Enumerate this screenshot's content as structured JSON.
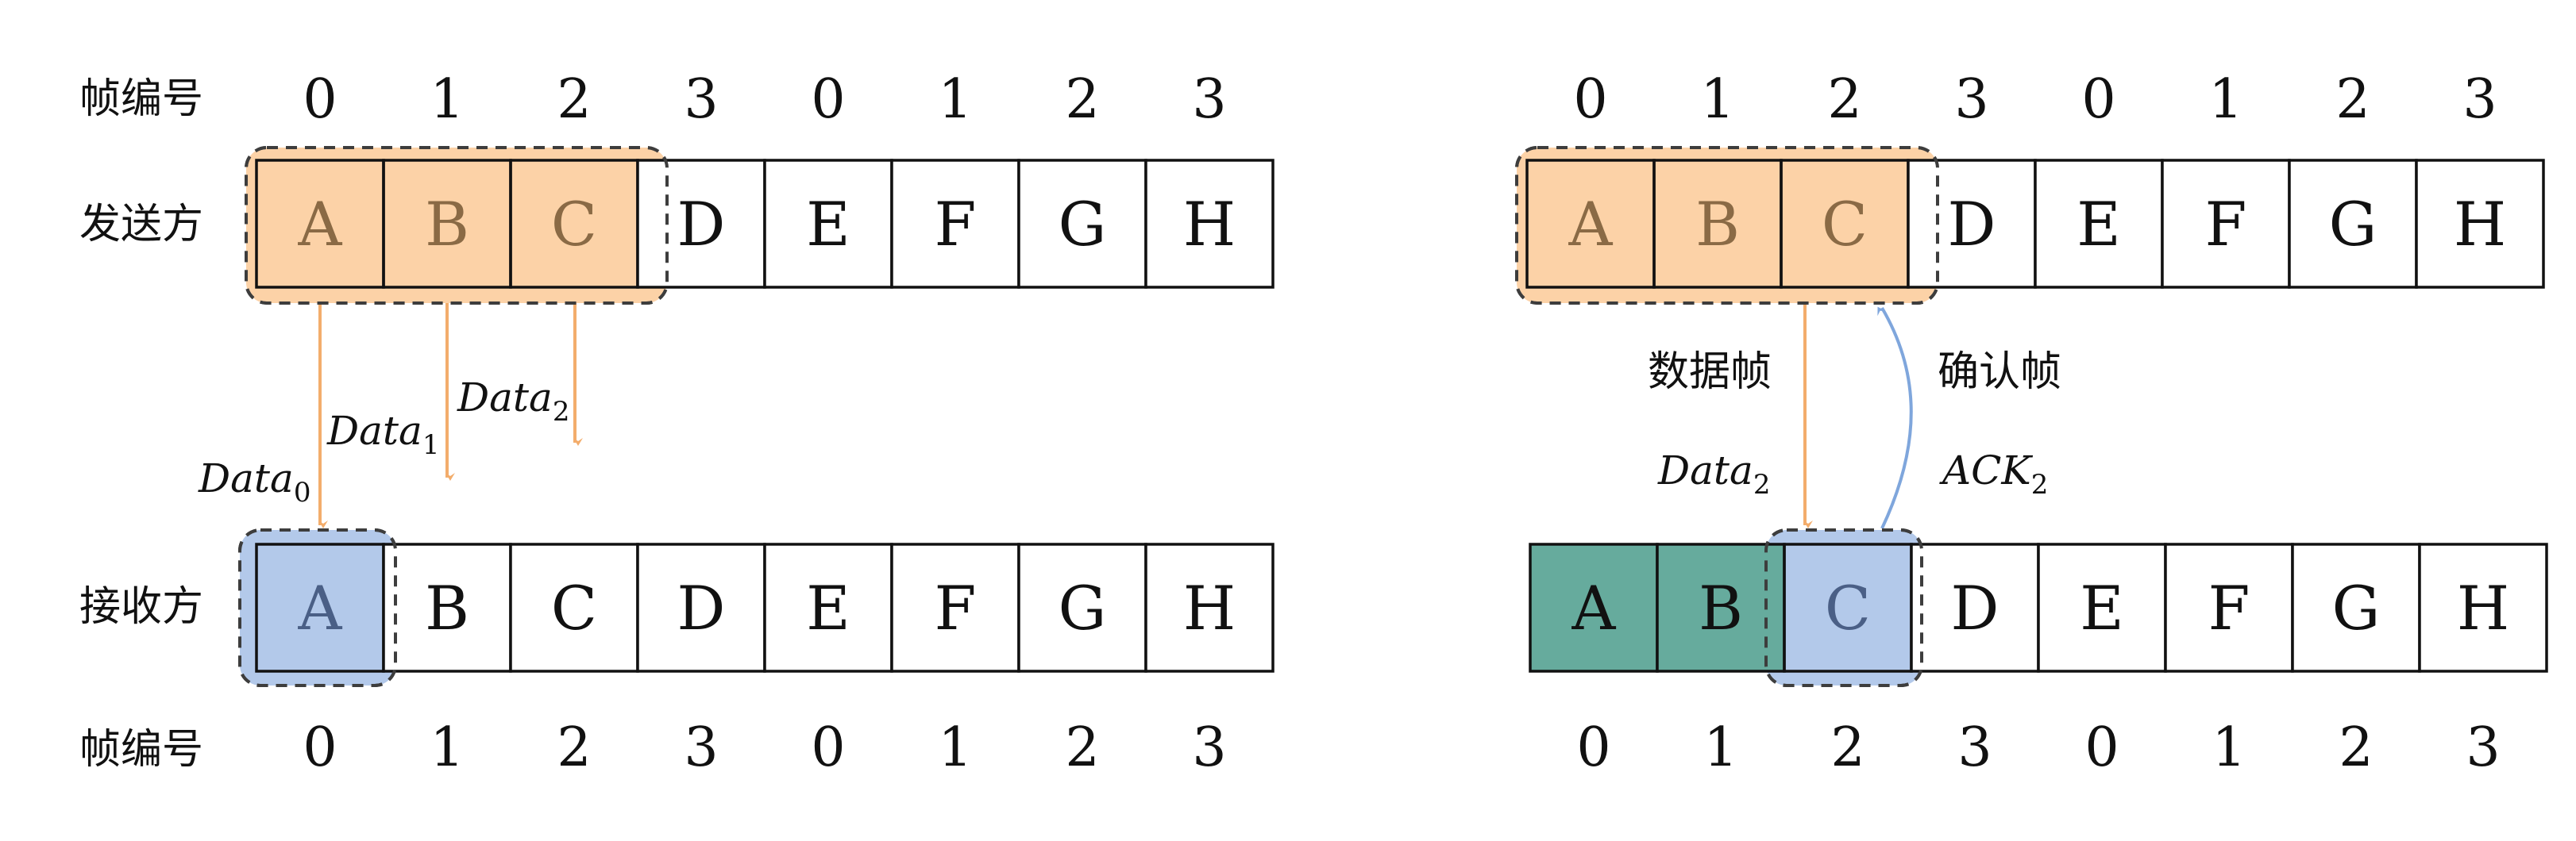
{
  "row_labels": {
    "frame_no_top": "帧编号",
    "sender": "发送方",
    "receiver": "接收方",
    "frame_no_bottom": "帧编号"
  },
  "frame_numbers": [
    "0",
    "1",
    "2",
    "3",
    "0",
    "1",
    "2",
    "3"
  ],
  "frames": [
    "A",
    "B",
    "C",
    "D",
    "E",
    "F",
    "G",
    "H"
  ],
  "left_panel": {
    "sender_window": [
      "A",
      "B",
      "C"
    ],
    "receiver_window": [
      "A"
    ],
    "data_arrows": [
      {
        "base": "Data",
        "sub": "0"
      },
      {
        "base": "Data",
        "sub": "1"
      },
      {
        "base": "Data",
        "sub": "2"
      }
    ]
  },
  "right_panel": {
    "sender_window": [
      "A",
      "B",
      "C"
    ],
    "receiver_acked": [
      "A",
      "B"
    ],
    "receiver_window": [
      "C"
    ],
    "data_label": "数据帧",
    "ack_label": "确认帧",
    "data_arrow": {
      "base": "Data",
      "sub": "2"
    },
    "ack_arrow": {
      "base": "ACK",
      "sub": "2"
    }
  },
  "colors": {
    "sender_window": "#fcd2a7",
    "receiver_window": "#b3c9ea",
    "acked_frame": "#66ab9d",
    "data_arrow": "#f3ad6c",
    "ack_arrow": "#7fa6dc"
  }
}
